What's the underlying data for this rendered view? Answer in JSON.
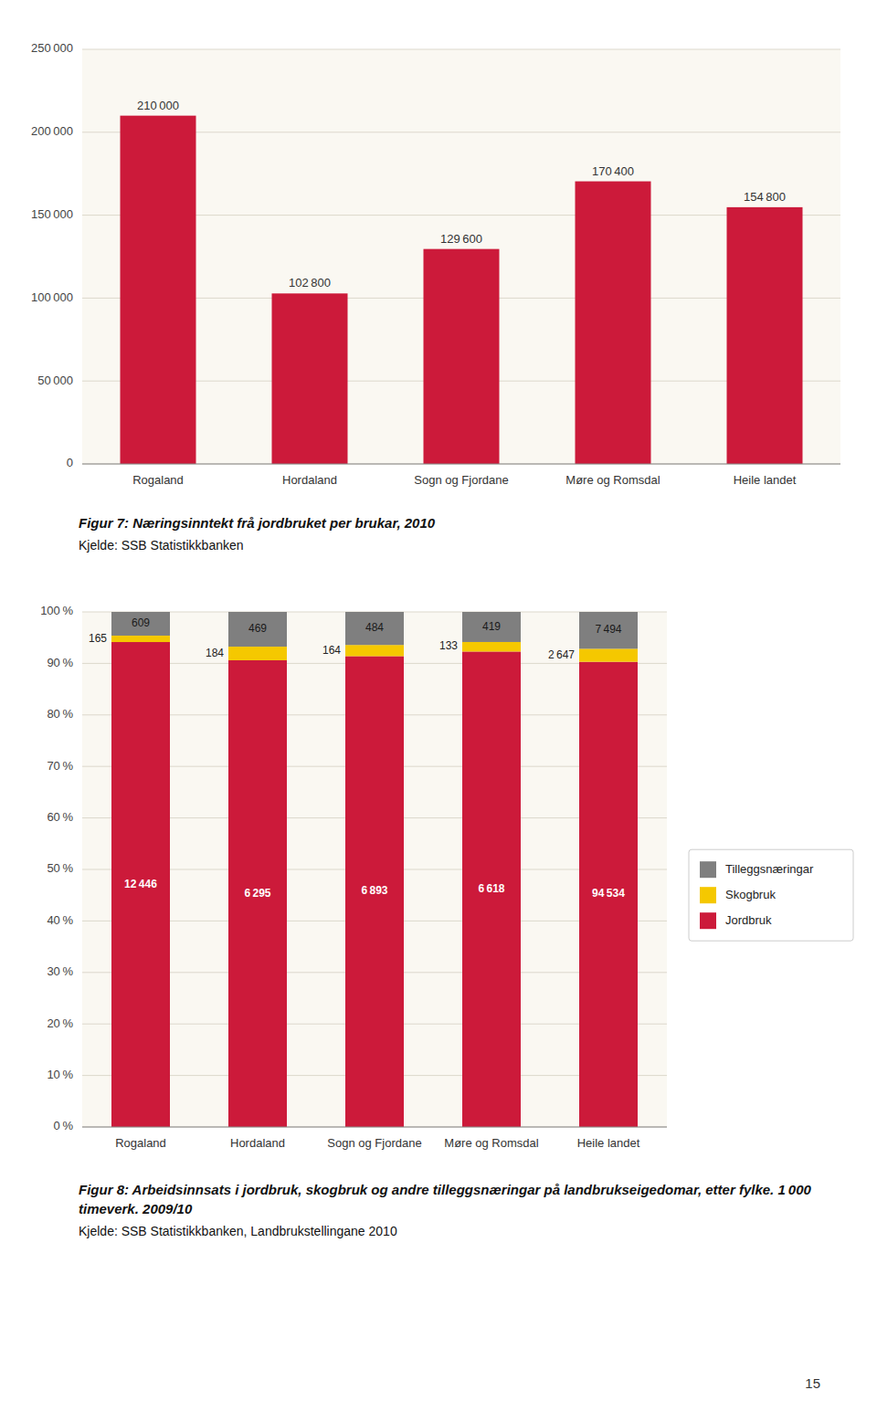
{
  "page_number": "15",
  "chart_data": [
    {
      "type": "bar",
      "title": "Figur 7: Næringsinntekt frå jordbruket per brukar, 2010",
      "annotations": [
        "Kjelde: SSB Statistikkbanken"
      ],
      "categories": [
        "Rogaland",
        "Hordaland",
        "Sogn og Fjordane",
        "Møre og Romsdal",
        "Heile landet"
      ],
      "values": [
        210000,
        102800,
        129600,
        170400,
        154800
      ],
      "value_labels": [
        "210 000",
        "102 800",
        "129 600",
        "170 400",
        "154 800"
      ],
      "data_labels": true,
      "color": "#cc1a3a",
      "ylim": [
        0,
        250000
      ],
      "yticks": [
        0,
        {
          "value": 50000,
          "label": "50 000"
        },
        {
          "value": 100000,
          "label": "100 000"
        },
        {
          "value": 150000,
          "label": "150 000"
        },
        {
          "value": 200000,
          "label": "200 000"
        },
        {
          "value": 250000,
          "label": "250 000"
        }
      ],
      "grid": true
    },
    {
      "type": "bar",
      "stacked": true,
      "title": "Figur 8: Arbeidsinnsats i jordbruk, skogbruk og andre tilleggsnæringar på landbrukseigedomar, etter fylke. 1 000 timeverk. 2009/10",
      "annotations": [
        "Kjelde: SSB Statistikkbanken, Landbrukstellingane 2010"
      ],
      "categories": [
        "Rogaland",
        "Hordaland",
        "Sogn og Fjordane",
        "Møre og Romsdal",
        "Heile landet"
      ],
      "series": [
        {
          "name": "Jordbruk",
          "color": "#cc1a3a",
          "values": [
            94.1452,
            90.6016,
            91.407,
            92.3013,
            90.3119
          ],
          "counts": [
            12446,
            6295,
            6893,
            6618,
            94534
          ],
          "count_labels": [
            "12 446",
            "6 295",
            "6 893",
            "6 618",
            "94 534"
          ]
        },
        {
          "name": "Skogbruk",
          "color": "#f5c800",
          "values": [
            1.2481,
            2.6482,
            2.1748,
            1.8549,
            2.5288
          ],
          "counts": [
            165,
            184,
            164,
            133,
            2647
          ],
          "count_labels": [
            "165",
            "184",
            "164",
            "133",
            "2 647"
          ]
        },
        {
          "name": "Tilleggsnæringar",
          "color": "#7f7f7f",
          "values": [
            4.6067,
            6.7501,
            6.4182,
            5.8438,
            7.1593
          ],
          "counts": [
            609,
            469,
            484,
            419,
            7494
          ],
          "count_labels": [
            "609",
            "469",
            "484",
            "419",
            "7 494"
          ]
        }
      ],
      "ylim": [
        0,
        100
      ],
      "yticks": [
        {
          "value": 0,
          "label": "0 %"
        },
        {
          "value": 10,
          "label": "10 %"
        },
        {
          "value": 20,
          "label": "20 %"
        },
        {
          "value": 30,
          "label": "30 %"
        },
        {
          "value": 40,
          "label": "40 %"
        },
        {
          "value": 50,
          "label": "50 %"
        },
        {
          "value": 60,
          "label": "60 %"
        },
        {
          "value": 70,
          "label": "70 %"
        },
        {
          "value": 80,
          "label": "80 %"
        },
        {
          "value": 90,
          "label": "90 %"
        },
        {
          "value": 100,
          "label": "100 %"
        }
      ],
      "grid": true,
      "legend": "right"
    }
  ]
}
